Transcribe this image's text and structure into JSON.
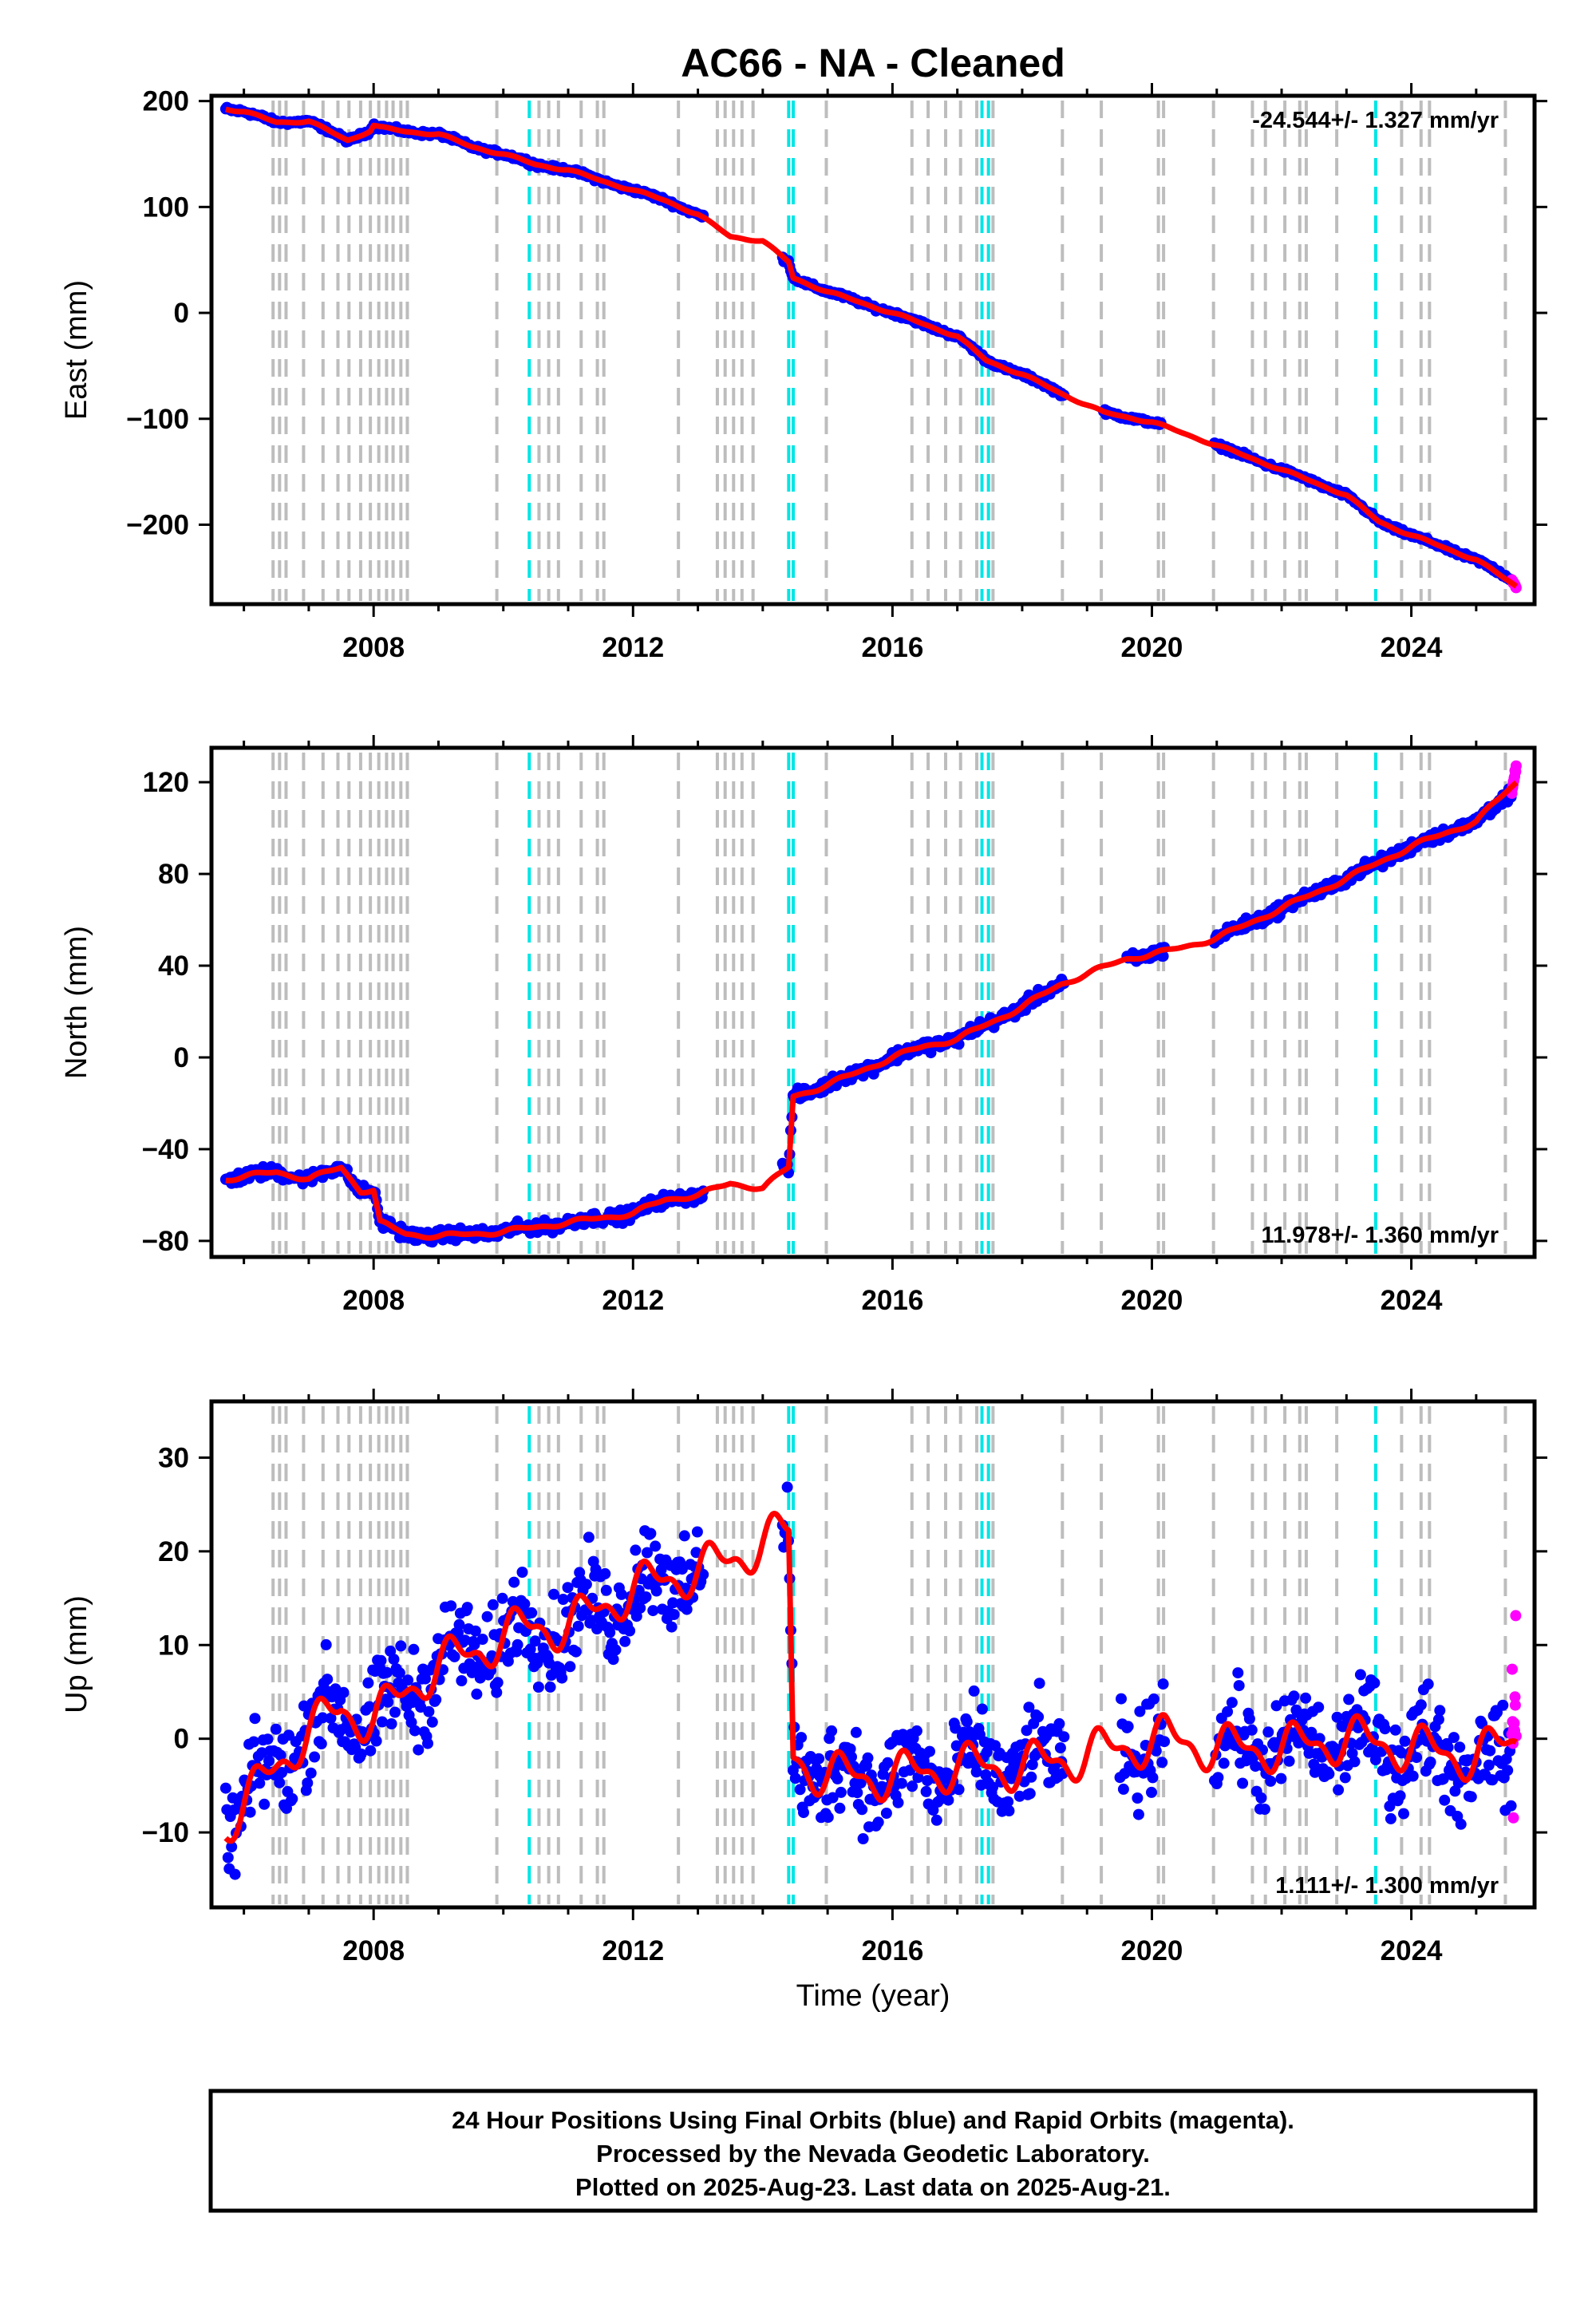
{
  "chart_data": {
    "type": "scatter",
    "title": "AC66  - NA - Cleaned",
    "xlabel": "Time (year)",
    "xlim": [
      2005.5,
      2025.9
    ],
    "x_ticks": [
      "2008",
      "2012",
      "2016",
      "2020",
      "2024"
    ],
    "colors": {
      "final_orbits": "#0000ff",
      "rapid_orbits": "#ff00ff",
      "model": "#ff0000",
      "offset_equipment": "#bdbdbd",
      "offset_earthquake": "#00e5e5"
    },
    "offsets_gray": [
      2006.45,
      2006.55,
      2006.65,
      2006.92,
      2007.22,
      2007.45,
      2007.62,
      2007.8,
      2007.95,
      2008.08,
      2008.2,
      2008.3,
      2008.42,
      2008.52,
      2009.9,
      2010.55,
      2010.7,
      2010.85,
      2011.2,
      2011.45,
      2011.55,
      2012.7,
      2013.3,
      2013.42,
      2013.55,
      2013.68,
      2013.85,
      2014.98,
      2016.3,
      2016.55,
      2016.82,
      2017.05,
      2017.3,
      2017.55,
      2018.62,
      2019.22,
      2020.1,
      2020.18,
      2020.95,
      2021.55,
      2021.75,
      2022.05,
      2022.28,
      2022.38,
      2022.85,
      2023.85,
      2024.15,
      2024.28,
      2025.45
    ],
    "offsets_cyan": [
      2010.4,
      2014.4,
      2014.47,
      2017.38,
      2017.48,
      2023.45
    ],
    "panels": [
      {
        "id": "east",
        "ylabel": "East (mm)",
        "ylim": [
          -275,
          205
        ],
        "y_ticks": [
          "200",
          "100",
          "0",
          "−100",
          "−200"
        ],
        "y_tick_values": [
          200,
          100,
          0,
          -100,
          -200
        ],
        "rate_text": "-24.544+/- 1.327 mm/yr",
        "rate_position": "top-right",
        "noise": 1.5,
        "gaps": [
          [
            2013.1,
            2014.3
          ],
          [
            2018.65,
            2019.25
          ],
          [
            2020.15,
            2020.95
          ]
        ],
        "series": [
          {
            "name": "Final Orbits",
            "x": [
              2005.72,
              2006.0,
              2006.4,
              2006.5,
              2007.0,
              2007.6,
              2007.95,
              2008.0,
              2008.1,
              2008.5,
              2009.0,
              2009.5,
              2010.0,
              2010.5,
              2011.0,
              2011.5,
              2012.0,
              2012.5,
              2013.0,
              2014.4,
              2014.47,
              2015.0,
              2016.0,
              2017.0,
              2017.45,
              2018.0,
              2018.6,
              2019.25,
              2020.0,
              2021.0,
              2022.0,
              2023.0,
              2023.5,
              2024.0,
              2025.0,
              2025.55
            ],
            "values": [
              193,
              190,
              182,
              180,
              181,
              163,
              172,
              177,
              175,
              171,
              169,
              157,
              150,
              140,
              135,
              125,
              116,
              106,
              93,
              48,
              33,
              20,
              0,
              -22,
              -45,
              -58,
              -76,
              -94,
              -103,
              -125,
              -148,
              -172,
              -197,
              -210,
              -233,
              -252
            ]
          },
          {
            "name": "Rapid Orbits",
            "x": [
              2025.55,
              2025.62
            ],
            "values": [
              -252,
              -260
            ]
          }
        ],
        "model": {
          "x": [
            2005.72,
            2006.0,
            2006.4,
            2006.5,
            2007.0,
            2007.6,
            2007.95,
            2008.0,
            2008.1,
            2008.5,
            2009.0,
            2009.5,
            2010.0,
            2010.5,
            2011.0,
            2011.5,
            2012.0,
            2012.5,
            2013.0,
            2013.5,
            2014.0,
            2014.4,
            2014.47,
            2015.0,
            2016.0,
            2017.0,
            2017.45,
            2018.0,
            2018.6,
            2019.25,
            2020.0,
            2021.0,
            2022.0,
            2023.0,
            2023.5,
            2024.0,
            2025.0,
            2025.62
          ],
          "values": [
            193,
            190,
            182,
            180,
            181,
            163,
            172,
            177,
            175,
            171,
            169,
            157,
            150,
            140,
            135,
            125,
            116,
            106,
            93,
            72,
            68,
            48,
            33,
            20,
            0,
            -22,
            -45,
            -58,
            -76,
            -94,
            -103,
            -125,
            -148,
            -172,
            -197,
            -210,
            -233,
            -258
          ]
        }
      },
      {
        "id": "north",
        "ylabel": "North (mm)",
        "ylim": [
          -87,
          135
        ],
        "y_ticks": [
          "120",
          "80",
          "40",
          "0",
          "−40",
          "−80"
        ],
        "y_tick_values": [
          120,
          80,
          40,
          0,
          -40,
          -80
        ],
        "rate_text": "11.978+/- 1.360 mm/yr",
        "rate_position": "bottom-right",
        "noise": 1.8,
        "gaps": [
          [
            2013.1,
            2014.3
          ],
          [
            2018.65,
            2019.6
          ],
          [
            2020.2,
            2020.95
          ]
        ],
        "series": [
          {
            "name": "Final Orbits",
            "x": [
              2005.72,
              2006.5,
              2007.0,
              2007.5,
              2007.8,
              2008.0,
              2008.1,
              2008.5,
              2009.0,
              2010.0,
              2011.0,
              2012.0,
              2012.5,
              2013.0,
              2014.4,
              2014.47,
              2015.0,
              2016.0,
              2016.5,
              2017.0,
              2017.5,
              2018.0,
              2018.6,
              2019.6,
              2020.2,
              2021.0,
              2022.0,
              2023.0,
              2024.0,
              2025.0,
              2025.55
            ],
            "values": [
              -53,
              -50,
              -53,
              -48,
              -58,
              -58,
              -72,
              -77,
              -78,
              -76,
              -72,
              -68,
              -62,
              -60,
              -48,
              -17,
              -12,
              0,
              5,
              8,
              15,
              22,
              32,
              43,
              46,
              52,
              65,
              78,
              92,
              103,
              115
            ]
          },
          {
            "name": "Rapid Orbits",
            "x": [
              2025.55,
              2025.62
            ],
            "values": [
              115,
              128
            ]
          }
        ],
        "model": {
          "x": [
            2005.72,
            2006.5,
            2007.0,
            2007.5,
            2007.8,
            2008.0,
            2008.1,
            2008.5,
            2009.0,
            2010.0,
            2011.0,
            2012.0,
            2012.5,
            2013.0,
            2013.5,
            2014.0,
            2014.4,
            2014.47,
            2015.0,
            2016.0,
            2016.5,
            2017.0,
            2017.5,
            2018.0,
            2018.6,
            2019.6,
            2020.2,
            2021.0,
            2022.0,
            2023.0,
            2024.0,
            2025.0,
            2025.62
          ],
          "values": [
            -53,
            -50,
            -53,
            -48,
            -58,
            -58,
            -72,
            -77,
            -78,
            -76,
            -72,
            -68,
            -62,
            -60,
            -55,
            -57,
            -48,
            -17,
            -12,
            0,
            5,
            8,
            15,
            22,
            32,
            43,
            46,
            52,
            65,
            78,
            92,
            103,
            120
          ]
        }
      },
      {
        "id": "up",
        "ylabel": "Up (mm)",
        "ylim": [
          -18,
          36
        ],
        "y_ticks": [
          "30",
          "20",
          "10",
          "0",
          "−10"
        ],
        "y_tick_values": [
          30,
          20,
          10,
          0,
          -10
        ],
        "rate_text": "1.111+/- 1.300 mm/yr",
        "rate_position": "bottom-right",
        "noise": 3.5,
        "gaps": [
          [
            2013.1,
            2014.3
          ],
          [
            2018.65,
            2019.5
          ],
          [
            2020.2,
            2020.95
          ]
        ],
        "series": [
          {
            "name": "Final Orbits",
            "x": [
              2005.72,
              2006.0,
              2006.5,
              2007.0,
              2007.5,
              2008.0,
              2008.5,
              2009.0,
              2009.5,
              2010.0,
              2010.5,
              2011.0,
              2011.5,
              2012.0,
              2012.5,
              2013.0,
              2014.4,
              2014.47,
              2015.0,
              2016.0,
              2017.0,
              2018.0,
              2019.5,
              2020.2,
              2021.0,
              2022.0,
              2023.0,
              2024.0,
              2025.0,
              2025.55
            ],
            "values": [
              -9,
              -7,
              -3,
              1,
              3,
              2,
              5,
              8,
              9,
              11,
              12,
              12,
              14,
              16,
              17,
              18,
              22,
              -2,
              -4,
              -4,
              -3,
              -3,
              -1,
              0,
              -1,
              -1,
              0,
              -1,
              -2,
              -3
            ]
          },
          {
            "name": "Rapid Orbits",
            "x": [
              2025.55,
              2025.6,
              2025.62
            ],
            "values": [
              -3,
              3,
              8
            ]
          }
        ],
        "model": {
          "x": [
            2005.72,
            2006.0,
            2006.5,
            2007.0,
            2007.5,
            2008.0,
            2008.5,
            2009.0,
            2009.5,
            2010.0,
            2010.5,
            2011.0,
            2011.5,
            2012.0,
            2012.5,
            2013.0,
            2013.5,
            2014.0,
            2014.4,
            2014.47,
            2015.0,
            2016.0,
            2017.0,
            2018.0,
            2019.5,
            2020.2,
            2021.0,
            2022.0,
            2023.0,
            2024.0,
            2025.0,
            2025.62
          ],
          "values": [
            -9,
            -7,
            -3,
            1,
            3,
            2,
            5,
            8,
            9,
            11,
            12,
            12,
            14,
            16,
            17,
            18,
            19,
            21,
            22,
            -2,
            -4,
            -4,
            -3,
            -3,
            -1,
            0,
            -1,
            -1,
            0,
            -1,
            -2,
            0
          ]
        }
      }
    ]
  },
  "footer": {
    "line1": "24 Hour Positions Using Final Orbits (blue) and Rapid Orbits (magenta).",
    "line2": "Processed by the Nevada Geodetic Laboratory.",
    "line3": "Plotted on 2025-Aug-23. Last data on 2025-Aug-21."
  }
}
